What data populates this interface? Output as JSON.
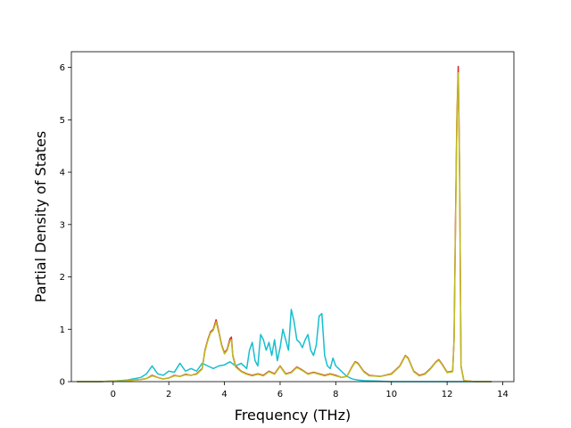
{
  "chart_data": {
    "type": "line",
    "title": "",
    "xlabel": "Frequency (THz)",
    "ylabel": "Partial Density of States",
    "xlim": [
      -1.5,
      14.4
    ],
    "ylim": [
      0,
      6.3
    ],
    "xticks": [
      0,
      2,
      4,
      6,
      8,
      10,
      12,
      14
    ],
    "yticks": [
      0,
      1,
      2,
      3,
      4,
      5,
      6
    ],
    "grid": false,
    "legend": "none",
    "series": [
      {
        "color": "#d62728",
        "x": [
          -1.3,
          -0.5,
          0.0,
          0.5,
          1.0,
          1.2,
          1.4,
          1.6,
          1.8,
          2.0,
          2.2,
          2.4,
          2.6,
          2.8,
          3.0,
          3.2,
          3.3,
          3.4,
          3.5,
          3.6,
          3.7,
          3.8,
          3.9,
          4.0,
          4.1,
          4.2,
          4.25,
          4.3,
          4.4,
          4.6,
          4.8,
          5.0,
          5.2,
          5.4,
          5.6,
          5.8,
          6.0,
          6.2,
          6.4,
          6.6,
          6.8,
          7.0,
          7.2,
          7.4,
          7.6,
          7.8,
          8.0,
          8.2,
          8.4,
          8.6,
          8.7,
          8.8,
          9.0,
          9.2,
          9.6,
          10.0,
          10.3,
          10.5,
          10.6,
          10.8,
          11.0,
          11.2,
          11.4,
          11.6,
          11.7,
          11.8,
          12.0,
          12.2,
          12.25,
          12.3,
          12.35,
          12.4,
          12.45,
          12.5,
          12.6,
          13.0,
          13.6
        ],
        "y": [
          0,
          0,
          0.01,
          0.02,
          0.04,
          0.06,
          0.12,
          0.08,
          0.05,
          0.07,
          0.12,
          0.1,
          0.14,
          0.12,
          0.15,
          0.25,
          0.6,
          0.8,
          0.95,
          1.0,
          1.18,
          0.95,
          0.7,
          0.55,
          0.62,
          0.82,
          0.85,
          0.5,
          0.3,
          0.2,
          0.15,
          0.12,
          0.15,
          0.12,
          0.2,
          0.15,
          0.3,
          0.15,
          0.18,
          0.28,
          0.22,
          0.15,
          0.18,
          0.15,
          0.12,
          0.15,
          0.12,
          0.08,
          0.1,
          0.3,
          0.38,
          0.35,
          0.2,
          0.12,
          0.1,
          0.15,
          0.3,
          0.5,
          0.45,
          0.2,
          0.12,
          0.15,
          0.25,
          0.38,
          0.42,
          0.35,
          0.18,
          0.2,
          0.8,
          3.0,
          5.0,
          6.02,
          4.0,
          0.3,
          0.02,
          0,
          0
        ]
      },
      {
        "color": "#17becf",
        "x": [
          -1.3,
          -0.5,
          0.0,
          0.5,
          1.0,
          1.2,
          1.4,
          1.6,
          1.8,
          2.0,
          2.2,
          2.4,
          2.6,
          2.8,
          3.0,
          3.2,
          3.4,
          3.6,
          3.8,
          4.0,
          4.2,
          4.4,
          4.6,
          4.8,
          4.9,
          5.0,
          5.1,
          5.2,
          5.3,
          5.4,
          5.5,
          5.6,
          5.7,
          5.8,
          5.9,
          6.0,
          6.1,
          6.2,
          6.3,
          6.4,
          6.5,
          6.6,
          6.7,
          6.8,
          6.9,
          7.0,
          7.1,
          7.2,
          7.3,
          7.4,
          7.5,
          7.6,
          7.7,
          7.8,
          7.9,
          8.0,
          8.2,
          8.4,
          8.6,
          8.8,
          9.0,
          9.5,
          10.0,
          11.0,
          12.0,
          12.4,
          13.0,
          13.6
        ],
        "y": [
          0,
          0,
          0.01,
          0.03,
          0.08,
          0.15,
          0.3,
          0.15,
          0.12,
          0.2,
          0.18,
          0.35,
          0.2,
          0.25,
          0.2,
          0.35,
          0.3,
          0.25,
          0.3,
          0.32,
          0.38,
          0.3,
          0.35,
          0.25,
          0.6,
          0.75,
          0.4,
          0.3,
          0.9,
          0.8,
          0.6,
          0.75,
          0.5,
          0.8,
          0.4,
          0.65,
          1.0,
          0.8,
          0.6,
          1.38,
          1.15,
          0.8,
          0.75,
          0.65,
          0.8,
          0.9,
          0.6,
          0.5,
          0.7,
          1.25,
          1.3,
          0.5,
          0.3,
          0.25,
          0.45,
          0.3,
          0.2,
          0.1,
          0.05,
          0.03,
          0.02,
          0.01,
          0,
          0,
          0,
          0,
          0,
          0
        ]
      },
      {
        "color": "#bcbd22",
        "x": [
          -1.3,
          -0.5,
          0.0,
          0.5,
          1.0,
          1.2,
          1.4,
          1.6,
          1.8,
          2.0,
          2.2,
          2.4,
          2.6,
          2.8,
          3.0,
          3.2,
          3.3,
          3.4,
          3.5,
          3.6,
          3.7,
          3.8,
          3.9,
          4.0,
          4.1,
          4.2,
          4.25,
          4.3,
          4.4,
          4.6,
          4.8,
          5.0,
          5.2,
          5.4,
          5.6,
          5.8,
          6.0,
          6.2,
          6.4,
          6.6,
          6.8,
          7.0,
          7.2,
          7.4,
          7.6,
          7.8,
          8.0,
          8.2,
          8.4,
          8.6,
          8.7,
          8.8,
          9.0,
          9.2,
          9.6,
          10.0,
          10.3,
          10.5,
          10.6,
          10.8,
          11.0,
          11.2,
          11.4,
          11.6,
          11.7,
          11.8,
          12.0,
          12.2,
          12.25,
          12.3,
          12.35,
          12.4,
          12.45,
          12.5,
          12.6,
          13.0,
          13.6
        ],
        "y": [
          0,
          0,
          0.01,
          0.02,
          0.04,
          0.06,
          0.11,
          0.08,
          0.05,
          0.07,
          0.11,
          0.1,
          0.13,
          0.12,
          0.14,
          0.24,
          0.58,
          0.78,
          0.93,
          0.98,
          1.14,
          0.93,
          0.68,
          0.53,
          0.6,
          0.78,
          0.8,
          0.48,
          0.28,
          0.19,
          0.14,
          0.11,
          0.14,
          0.11,
          0.19,
          0.14,
          0.29,
          0.14,
          0.17,
          0.27,
          0.21,
          0.14,
          0.17,
          0.14,
          0.11,
          0.14,
          0.11,
          0.08,
          0.1,
          0.29,
          0.37,
          0.34,
          0.19,
          0.11,
          0.1,
          0.14,
          0.29,
          0.49,
          0.44,
          0.19,
          0.11,
          0.14,
          0.24,
          0.37,
          0.41,
          0.34,
          0.17,
          0.19,
          0.78,
          2.9,
          4.9,
          5.9,
          3.9,
          0.29,
          0.02,
          0,
          0
        ]
      }
    ]
  }
}
